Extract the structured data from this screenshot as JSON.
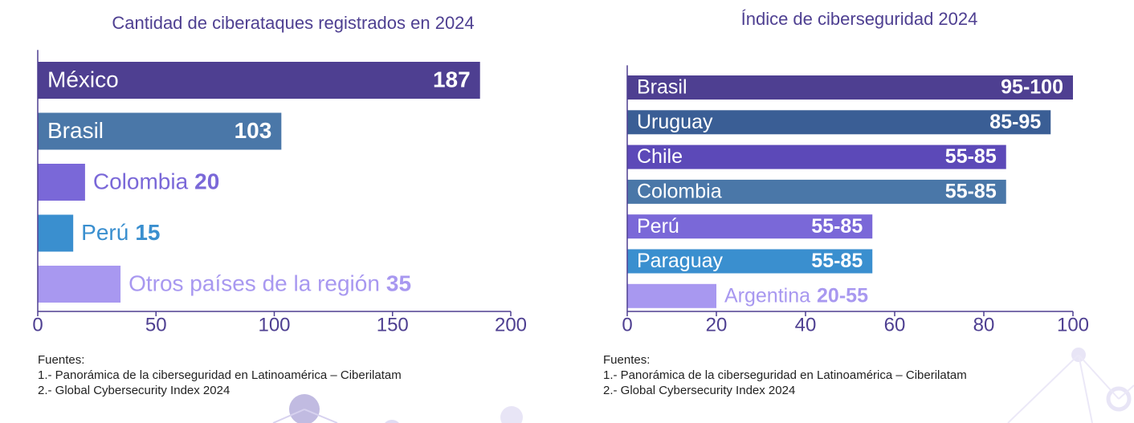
{
  "chart_data": [
    {
      "type": "bar",
      "orientation": "horizontal",
      "title": "Cantidad de ciberataques registrados en 2024",
      "categories": [
        "México",
        "Brasil",
        "Colombia",
        "Perú",
        "Otros países de la región"
      ],
      "values": [
        187,
        103,
        20,
        15,
        35
      ],
      "colors": [
        "#4e3f91",
        "#4a77a8",
        "#7a68d8",
        "#3a8fcf",
        "#a898f0"
      ],
      "xlim": [
        0,
        200
      ],
      "xticks": [
        0,
        50,
        100,
        150,
        200
      ],
      "sources": [
        "Fuentes:",
        "1.- Panorámica de la ciberseguridad en Latinoamérica – Ciberilatam",
        "2.- Global Cybersecurity Index 2024"
      ]
    },
    {
      "type": "bar",
      "orientation": "horizontal",
      "title": "Índice de ciberseguridad 2024",
      "categories": [
        "Brasil",
        "Uruguay",
        "Chile",
        "Colombia",
        "Perú",
        "Paraguay",
        "Argentina"
      ],
      "values": [
        100,
        95,
        85,
        85,
        55,
        55,
        20
      ],
      "value_labels": [
        "95-100",
        "85-95",
        "55-85",
        "55-85",
        "55-85",
        "55-85",
        "20-55"
      ],
      "colors": [
        "#4e3f91",
        "#3a5e95",
        "#5c49b8",
        "#4a77a8",
        "#7a68d8",
        "#3a8fcf",
        "#a898f0"
      ],
      "xlim": [
        0,
        100
      ],
      "xticks": [
        0,
        20,
        40,
        60,
        80,
        100
      ],
      "sources": [
        "Fuentes:",
        "1.- Panorámica de la ciberseguridad en Latinoamérica – Ciberilatam",
        "2.- Global Cybersecurity Index 2024"
      ]
    }
  ]
}
